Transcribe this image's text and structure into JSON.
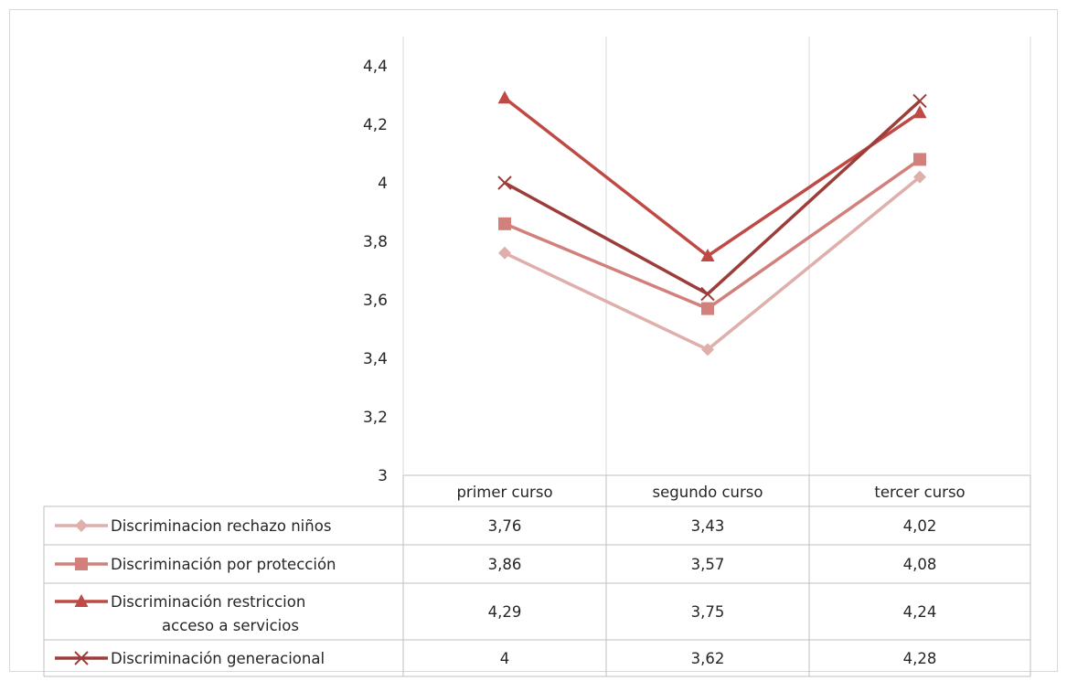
{
  "chart_data": {
    "type": "line",
    "categories": [
      "primer curso",
      "segundo curso",
      "tercer curso"
    ],
    "ylim": [
      3,
      4.4
    ],
    "y_ticks": [
      3,
      3.2,
      3.4,
      3.6,
      3.8,
      4,
      4.2,
      4.4
    ],
    "y_tick_labels": [
      "3",
      "3,2",
      "3,4",
      "3,6",
      "3,8",
      "4",
      "4,2",
      "4,4"
    ],
    "vertical_grid": true,
    "horizontal_grid": false,
    "legend_placement": "data-table",
    "series": [
      {
        "name": "Discriminacion rechazo niños",
        "label_lines": [
          "Discriminacion rechazo niños"
        ],
        "values": [
          3.76,
          3.43,
          4.02
        ],
        "value_labels": [
          "3,76",
          "3,43",
          "4,02"
        ],
        "color": "#dfafab",
        "marker": "diamond"
      },
      {
        "name": "Discriminación por protección",
        "label_lines": [
          "Discriminación por protección"
        ],
        "values": [
          3.86,
          3.57,
          4.08
        ],
        "value_labels": [
          "3,86",
          "3,57",
          "4,08"
        ],
        "color": "#d2807b",
        "marker": "square"
      },
      {
        "name": "Discriminación restriccion acceso a servicios",
        "label_lines": [
          "Discriminación restriccion",
          "acceso a servicios"
        ],
        "values": [
          4.29,
          3.75,
          4.24
        ],
        "value_labels": [
          "4,29",
          "3,75",
          "4,24"
        ],
        "color": "#bf4a45",
        "marker": "triangle"
      },
      {
        "name": "Discriminación generacional",
        "label_lines": [
          "Discriminación generacional"
        ],
        "values": [
          4,
          3.62,
          4.28
        ],
        "value_labels": [
          "4",
          "3,62",
          "4,28"
        ],
        "color": "#9c3d3a",
        "marker": "x"
      }
    ]
  }
}
